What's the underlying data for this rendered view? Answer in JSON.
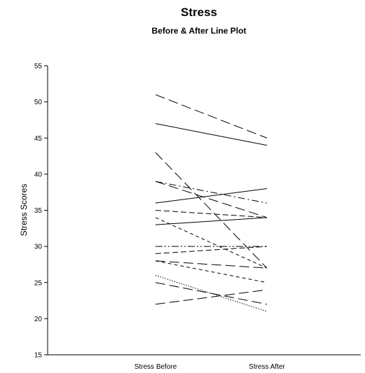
{
  "chart_data": {
    "type": "line",
    "title": "Stress",
    "subtitle": "Before & After Line Plot",
    "xlabel": "",
    "ylabel": "Stress Scores",
    "categories": [
      "Stress Before",
      "Stress After"
    ],
    "ylim": [
      15,
      55
    ],
    "yticks": [
      15,
      20,
      25,
      30,
      35,
      40,
      45,
      50,
      55
    ],
    "grid": false,
    "legend": "none",
    "line_color": "#000000",
    "series": [
      {
        "values": [
          51,
          45
        ],
        "dash": "long-dash"
      },
      {
        "values": [
          47,
          44
        ],
        "dash": "solid"
      },
      {
        "values": [
          43,
          27
        ],
        "dash": "long-dash"
      },
      {
        "values": [
          39,
          34
        ],
        "dash": "long-dash"
      },
      {
        "values": [
          39,
          36
        ],
        "dash": "dash-dot"
      },
      {
        "values": [
          36,
          38
        ],
        "dash": "solid"
      },
      {
        "values": [
          35,
          34
        ],
        "dash": "medium-dash"
      },
      {
        "values": [
          34,
          27
        ],
        "dash": "dash"
      },
      {
        "values": [
          33,
          34
        ],
        "dash": "solid"
      },
      {
        "values": [
          30,
          30
        ],
        "dash": "dash-dot-dot"
      },
      {
        "values": [
          29,
          30
        ],
        "dash": "medium-dash"
      },
      {
        "values": [
          28,
          27
        ],
        "dash": "long-dash"
      },
      {
        "values": [
          28,
          25
        ],
        "dash": "dash"
      },
      {
        "values": [
          26,
          21
        ],
        "dash": "dotted"
      },
      {
        "values": [
          25,
          22
        ],
        "dash": "long-dash"
      },
      {
        "values": [
          22,
          24
        ],
        "dash": "long-dash"
      }
    ]
  }
}
